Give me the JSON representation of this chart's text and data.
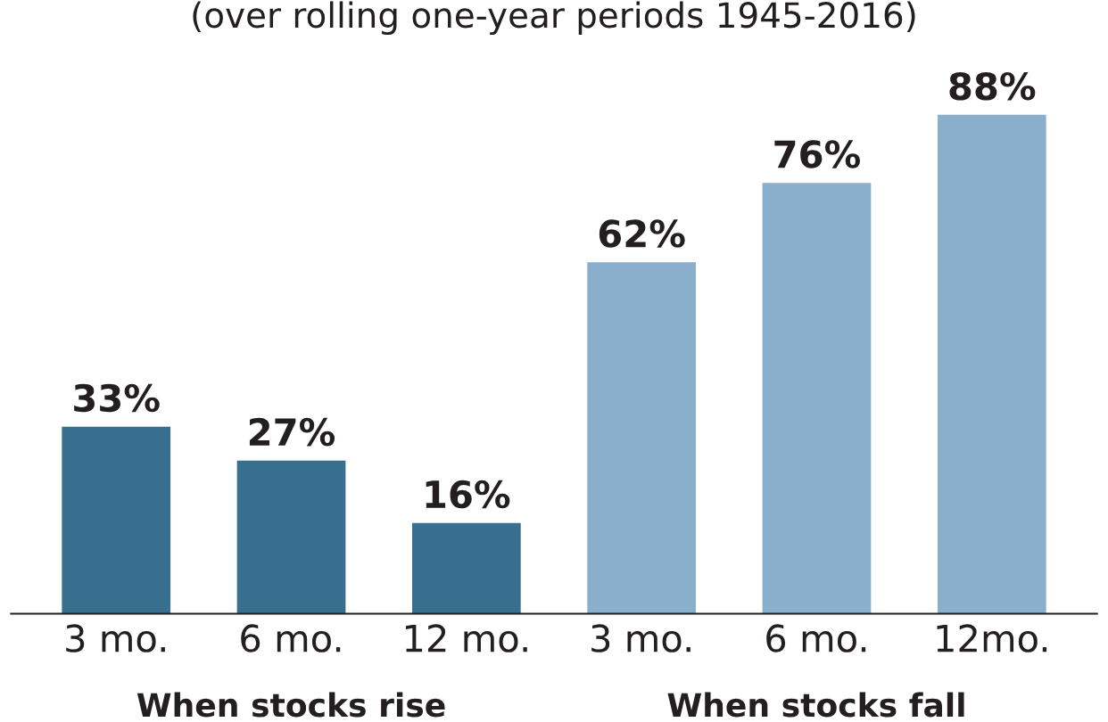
{
  "chart_data": {
    "type": "bar",
    "subtitle": "(over rolling one-year periods 1945-2016)",
    "categories": [
      "3 mo.",
      "6 mo.",
      "12 mo.",
      "3 mo.",
      "6 mo.",
      "12mo."
    ],
    "values": [
      33,
      27,
      16,
      62,
      76,
      88
    ],
    "colors": [
      "#386e8e",
      "#386e8e",
      "#386e8e",
      "#89afcc",
      "#89afcc",
      "#89afcc"
    ],
    "value_labels": [
      "33%",
      "27%",
      "16%",
      "62%",
      "76%",
      "88%"
    ],
    "grid": false,
    "tick_labels": "x",
    "annotations": [
      "When stocks rise",
      "When stocks fall"
    ]
  }
}
